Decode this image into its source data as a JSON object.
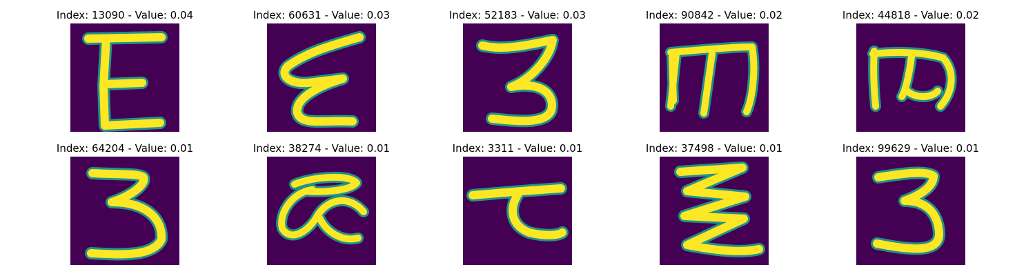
{
  "colors": {
    "background": "#440154",
    "glyph": "#fde725",
    "edge": "#21918c"
  },
  "panels": [
    {
      "title": "Index: 13090 - Value: 0.04",
      "glyph": "E"
    },
    {
      "title": "Index: 60631 - Value: 0.03",
      "glyph": "epsilon-script"
    },
    {
      "title": "Index: 52183 - Value: 0.03",
      "glyph": "3"
    },
    {
      "title": "Index: 90842 - Value: 0.02",
      "glyph": "m"
    },
    {
      "title": "Index: 44818 - Value: 0.02",
      "glyph": "m"
    },
    {
      "title": "Index: 64204 - Value: 0.01",
      "glyph": "3"
    },
    {
      "title": "Index: 38274 - Value: 0.01",
      "glyph": "alpha-loop"
    },
    {
      "title": "Index: 3311 - Value: 0.01",
      "glyph": "tau"
    },
    {
      "title": "Index: 37498 - Value: 0.01",
      "glyph": "zigzag"
    },
    {
      "title": "Index: 99629 - Value: 0.01",
      "glyph": "3"
    }
  ]
}
